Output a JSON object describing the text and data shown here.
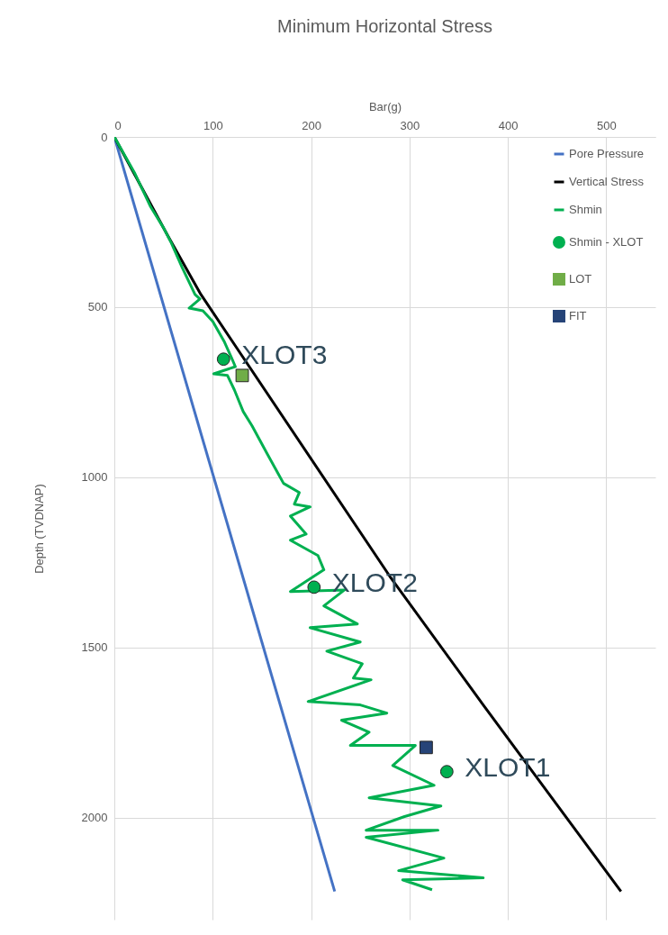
{
  "chart_data": {
    "type": "line",
    "title": "Minimum Horizontal Stress",
    "xlabel": "Bar(g)",
    "ylabel": "Depth (TVDNAP)",
    "xlim": [
      0,
      550
    ],
    "xticks": [
      0,
      100,
      200,
      300,
      400,
      500
    ],
    "ylim": [
      2300,
      0
    ],
    "yticks": [
      0,
      500,
      1000,
      1500,
      2000
    ],
    "grid": true,
    "legend": "top right",
    "series": [
      {
        "name": "Pore Pressure",
        "color": "#4472c4",
        "x": [
          0,
          224
        ],
        "values": [
          0,
          2217
        ]
      },
      {
        "name": "Vertical Stress",
        "color": "#000000",
        "x": [
          0,
          55,
          88,
          280,
          375,
          515
        ],
        "values": [
          0,
          294,
          463,
          1291,
          1669,
          2217
        ]
      },
      {
        "name": "Shmin",
        "color": "#00b050",
        "x": [
          0,
          21,
          37,
          50,
          58,
          69,
          82,
          87,
          76,
          90,
          100,
          112,
          119,
          123,
          101,
          115,
          122,
          131,
          140,
          155,
          167,
          172,
          188,
          183,
          199,
          179,
          195,
          179,
          207,
          213,
          179,
          234,
          213,
          247,
          199,
          250,
          216,
          252,
          243,
          261,
          197,
          250,
          277,
          231,
          259,
          240,
          306,
          283,
          325,
          259,
          332,
          295,
          256,
          329,
          256,
          335,
          289,
          375,
          293,
          323
        ],
        "values": [
          0,
          108,
          206,
          267,
          312,
          384,
          463,
          476,
          503,
          511,
          542,
          603,
          648,
          675,
          696,
          701,
          743,
          807,
          849,
          929,
          992,
          1018,
          1045,
          1079,
          1087,
          1114,
          1167,
          1185,
          1230,
          1272,
          1336,
          1331,
          1378,
          1431,
          1442,
          1484,
          1511,
          1548,
          1590,
          1595,
          1659,
          1669,
          1693,
          1714,
          1749,
          1788,
          1788,
          1847,
          1905,
          1942,
          1966,
          1997,
          2037,
          2037,
          2058,
          2119,
          2156,
          2177,
          2183,
          2212
        ]
      },
      {
        "name": "Shmin - XLOT",
        "type": "scatter",
        "marker": "circle",
        "color": "#00b050",
        "x": [
          111,
          203,
          338
        ],
        "values": [
          653,
          1323,
          1865
        ]
      },
      {
        "name": "LOT",
        "type": "scatter",
        "marker": "square",
        "color": "#70ad47",
        "x": [
          130
        ],
        "values": [
          701
        ]
      },
      {
        "name": "FIT",
        "type": "scatter",
        "marker": "square",
        "color": "#264478",
        "x": [
          317
        ],
        "values": [
          1794
        ]
      }
    ],
    "annotations": [
      {
        "text": "XLOT3",
        "x": 111,
        "y": 653
      },
      {
        "text": "XLOT2",
        "x": 203,
        "y": 1323
      },
      {
        "text": "XLOT1",
        "x": 338,
        "y": 1865
      }
    ]
  }
}
